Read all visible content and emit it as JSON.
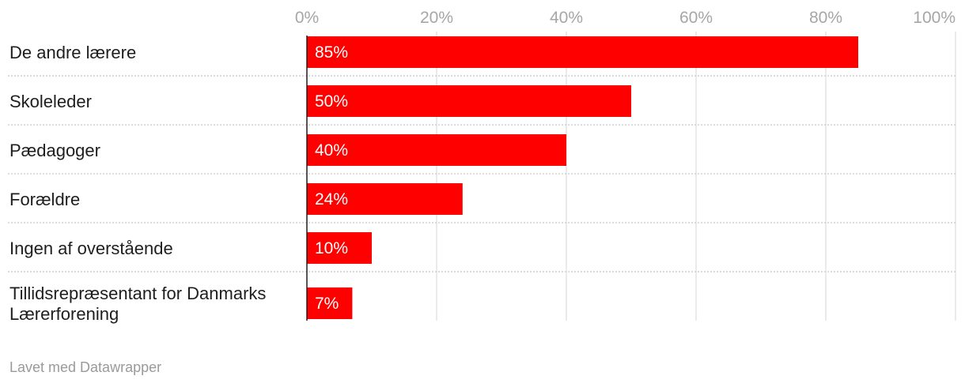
{
  "chart_data": {
    "type": "bar",
    "orientation": "horizontal",
    "categories": [
      [
        "De andre lærere"
      ],
      [
        "Skoleleder"
      ],
      [
        "Pædagoger"
      ],
      [
        "Forældre"
      ],
      [
        "Ingen af overstående"
      ],
      [
        "Tillidsrepræsentant for Danmarks",
        "Lærerforening"
      ]
    ],
    "values": [
      85,
      50,
      40,
      24,
      10,
      7
    ],
    "value_labels": [
      "85%",
      "50%",
      "40%",
      "24%",
      "10%",
      "7%"
    ],
    "xlim": [
      0,
      100
    ],
    "xticks": [
      0,
      20,
      40,
      60,
      80,
      100
    ],
    "xtick_labels": [
      "0%",
      "20%",
      "40%",
      "60%",
      "80%",
      "100%"
    ],
    "bar_color": "#ff0000",
    "grid": true
  },
  "footer": {
    "credit": "Lavet med Datawrapper"
  }
}
